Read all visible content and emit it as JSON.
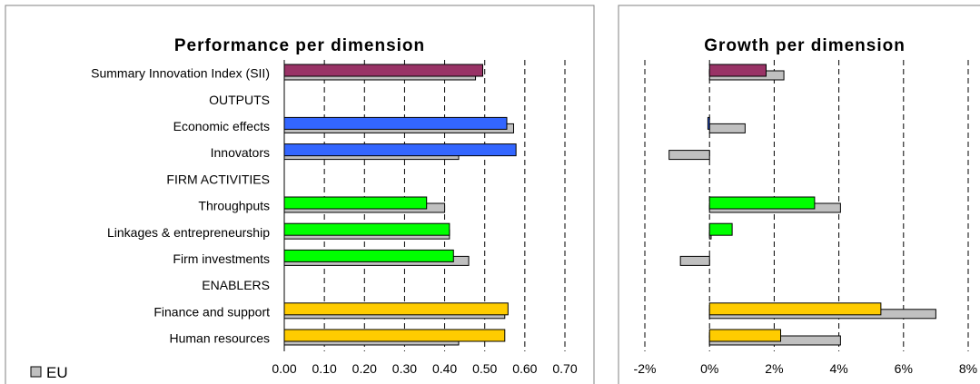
{
  "colors": {
    "eu": "#c0c0c0",
    "summary": "#993366",
    "outputs": "#3366ff",
    "firm_activities": "#00ff00",
    "enablers": "#ffcc00",
    "bar_outline": "#000000",
    "grid": "#000000",
    "frame": "#808080"
  },
  "legend": {
    "label": "EU",
    "swatch_color": "#c0c0c0"
  },
  "categories": [
    {
      "label": "Summary Innovation Index (SII)",
      "group": "summary"
    },
    {
      "label": "OUTPUTS",
      "group": "header"
    },
    {
      "label": "Economic effects",
      "group": "outputs"
    },
    {
      "label": "Innovators",
      "group": "outputs"
    },
    {
      "label": "FIRM ACTIVITIES",
      "group": "header"
    },
    {
      "label": "Throughputs",
      "group": "firm_activities"
    },
    {
      "label": "Linkages & entrepreneurship",
      "group": "firm_activities"
    },
    {
      "label": "Firm investments",
      "group": "firm_activities"
    },
    {
      "label": "ENABLERS",
      "group": "header"
    },
    {
      "label": "Finance and support",
      "group": "enablers"
    },
    {
      "label": "Human resources",
      "group": "enablers"
    }
  ],
  "chart_data": [
    {
      "type": "bar",
      "orientation": "horizontal",
      "title": "Performance per dimension",
      "xlabel": "",
      "ylabel": "",
      "xlim": [
        0,
        0.7
      ],
      "ticks": [
        0,
        0.1,
        0.2,
        0.3,
        0.4,
        0.5,
        0.6,
        0.7
      ],
      "tick_labels": [
        "0.00",
        "0.10",
        "0.20",
        "0.30",
        "0.40",
        "0.50",
        "0.60",
        "0.70"
      ],
      "grid": "vertical dashed",
      "series": [
        {
          "name": "",
          "values": [
            0.495,
            null,
            0.555,
            0.578,
            null,
            0.355,
            0.412,
            0.422,
            null,
            0.558,
            0.55
          ]
        },
        {
          "name": "EU",
          "values": [
            0.477,
            null,
            0.572,
            0.435,
            null,
            0.4,
            0.412,
            0.46,
            null,
            0.55,
            0.435
          ]
        }
      ]
    },
    {
      "type": "bar",
      "orientation": "horizontal",
      "title": "Growth per dimension",
      "xlabel": "",
      "ylabel": "",
      "xlim": [
        -2,
        8
      ],
      "ticks": [
        -2,
        0,
        2,
        4,
        6,
        8
      ],
      "tick_labels": [
        "-2%",
        "0%",
        "2%",
        "4%",
        "6%",
        "8%"
      ],
      "unit": "%",
      "grid": "vertical dashed",
      "series": [
        {
          "name": "",
          "values": [
            1.75,
            null,
            -0.05,
            null,
            null,
            3.25,
            0.7,
            null,
            null,
            5.3,
            2.2
          ]
        },
        {
          "name": "EU",
          "values": [
            2.3,
            null,
            1.1,
            -1.25,
            null,
            4.05,
            0.05,
            -0.9,
            null,
            7.0,
            4.05
          ]
        }
      ]
    }
  ]
}
